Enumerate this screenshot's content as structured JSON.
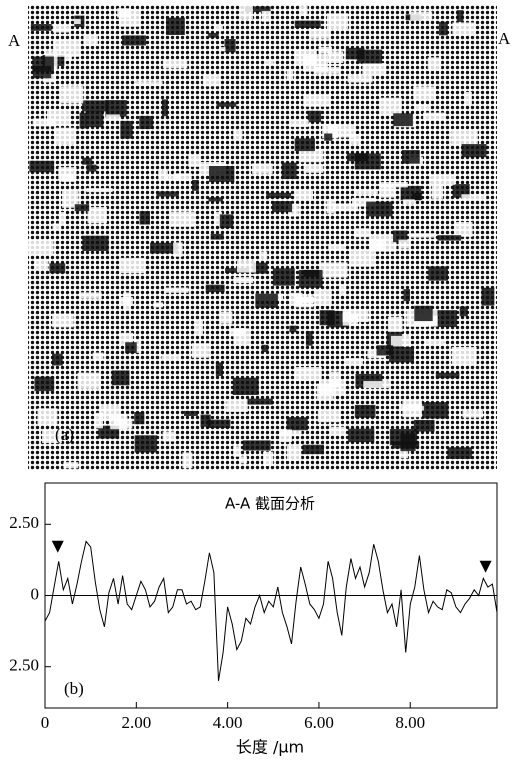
{
  "image": {
    "left_label": "A",
    "right_label": "A",
    "panel_label": "(a)"
  },
  "chart_data": {
    "type": "line",
    "title": "A-A 截面分析",
    "xlabel": "长度 /µm",
    "panel_label": "(b)",
    "x": [
      0,
      0.1,
      0.2,
      0.3,
      0.4,
      0.5,
      0.6,
      0.7,
      0.8,
      0.9,
      1,
      1.1,
      1.2,
      1.3,
      1.4,
      1.5,
      1.6,
      1.7,
      1.8,
      1.9,
      2,
      2.1,
      2.2,
      2.3,
      2.4,
      2.5,
      2.6,
      2.7,
      2.8,
      2.9,
      3,
      3.1,
      3.2,
      3.3,
      3.4,
      3.5,
      3.6,
      3.7,
      3.8,
      3.9,
      4,
      4.1,
      4.2,
      4.3,
      4.4,
      4.5,
      4.6,
      4.7,
      4.8,
      4.9,
      5,
      5.1,
      5.2,
      5.3,
      5.4,
      5.5,
      5.6,
      5.7,
      5.8,
      5.9,
      6,
      6.1,
      6.2,
      6.3,
      6.4,
      6.5,
      6.6,
      6.7,
      6.8,
      6.9,
      7,
      7.1,
      7.2,
      7.3,
      7.4,
      7.5,
      7.6,
      7.7,
      7.8,
      7.9,
      8,
      8.1,
      8.2,
      8.3,
      8.4,
      8.5,
      8.6,
      8.7,
      8.8,
      8.9,
      9,
      9.1,
      9.2,
      9.3,
      9.4,
      9.5,
      9.6,
      9.7,
      9.8,
      9.9
    ],
    "series": [
      {
        "color": "#000000",
        "values": [
          -0.9,
          -0.6,
          0.3,
          1.2,
          0.2,
          0.6,
          -0.3,
          0.4,
          1.2,
          1.9,
          1.7,
          0.5,
          -0.5,
          -1.1,
          0.1,
          0.6,
          -0.3,
          0.7,
          -0.3,
          -0.5,
          0.0,
          0.5,
          0.2,
          -0.4,
          -0.2,
          0.3,
          0.6,
          -0.6,
          -0.4,
          0.2,
          0.2,
          -0.3,
          -0.2,
          -0.5,
          -0.4,
          0.5,
          1.5,
          0.8,
          -3.0,
          -2.0,
          -0.4,
          -1.0,
          -1.9,
          -1.6,
          -0.8,
          -1.0,
          -0.4,
          0.0,
          -0.6,
          -0.2,
          -0.4,
          0.3,
          -0.6,
          -1.1,
          -1.7,
          -0.2,
          1.0,
          0.4,
          -0.3,
          -0.5,
          -0.8,
          -0.3,
          1.2,
          0.6,
          -0.6,
          -1.4,
          0.3,
          1.3,
          0.6,
          1.0,
          0.3,
          0.8,
          1.8,
          1.2,
          0.2,
          -0.6,
          -0.3,
          -1.1,
          0.2,
          -2.0,
          -0.3,
          0.3,
          1.4,
          0.2,
          -0.6,
          -0.2,
          -0.4,
          -0.5,
          0.2,
          0.1,
          -0.4,
          -0.6,
          -0.3,
          -0.1,
          0.2,
          0.0,
          0.6,
          0.3,
          0.4,
          -0.6
        ]
      }
    ],
    "cursors": [
      {
        "x": 0.28,
        "y": 1.5
      },
      {
        "x": 9.65,
        "y": 0.8
      }
    ],
    "xlim": [
      0,
      9.9
    ],
    "ylim": [
      -3.95,
      3.95
    ],
    "xticks": [
      0,
      {
        "value": 2,
        "label": "2.00"
      },
      {
        "value": 4,
        "label": "4.00"
      },
      {
        "value": 6,
        "label": "6.00"
      },
      {
        "value": 8,
        "label": "8.00"
      }
    ],
    "yticks": [
      {
        "value": 2.5,
        "label": "2.50"
      },
      0,
      {
        "value": -2.5,
        "label": "2.50"
      }
    ]
  }
}
